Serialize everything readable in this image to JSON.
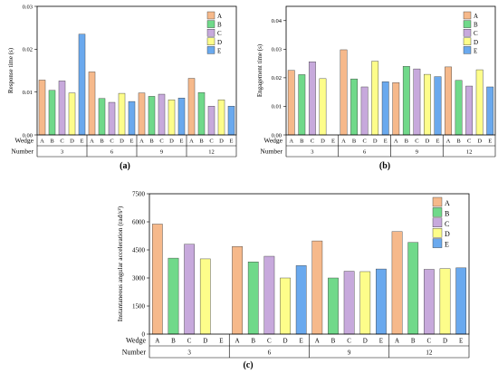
{
  "colors": {
    "A": "#f6b98b",
    "B": "#70d98a",
    "C": "#c7a9dc",
    "D": "#fdfd8a",
    "E": "#6aa9ee"
  },
  "group_label_top": "Wedge",
  "group_label_bottom": "Number",
  "chart_data": [
    {
      "type": "bar",
      "panel_label": "(a)",
      "ylabel": "Response time (s)",
      "ylim": [
        0,
        0.03
      ],
      "yticks": [
        "0.00",
        "0.01",
        "0.02",
        "0.03"
      ],
      "categories": [
        "3",
        "6",
        "9",
        "12"
      ],
      "series": [
        {
          "name": "A",
          "values": [
            0.0128,
            0.0147,
            0.0098,
            0.0132
          ]
        },
        {
          "name": "B",
          "values": [
            0.0104,
            0.0085,
            0.009,
            0.0099
          ]
        },
        {
          "name": "C",
          "values": [
            0.0126,
            0.0076,
            0.0095,
            0.0067
          ]
        },
        {
          "name": "D",
          "values": [
            0.0098,
            0.0097,
            0.0082,
            0.0082
          ]
        },
        {
          "name": "E",
          "values": [
            0.0235,
            0.0078,
            0.0086,
            0.0067
          ]
        }
      ],
      "legend_position": "top-right"
    },
    {
      "type": "bar",
      "panel_label": "(b)",
      "ylabel": "Engagement time (s)",
      "ylim": [
        0,
        0.045
      ],
      "yticks": [
        "0.00",
        "0.01",
        "0.02",
        "0.03",
        "0.04"
      ],
      "categories": [
        "3",
        "6",
        "9",
        "12"
      ],
      "series": [
        {
          "name": "A",
          "values": [
            0.0226,
            0.0298,
            0.0183,
            0.0238
          ]
        },
        {
          "name": "B",
          "values": [
            0.0211,
            0.0196,
            0.024,
            0.0191
          ]
        },
        {
          "name": "C",
          "values": [
            0.0256,
            0.0168,
            0.0231,
            0.0171
          ]
        },
        {
          "name": "D",
          "values": [
            0.0197,
            0.0258,
            0.0212,
            0.0228
          ]
        },
        {
          "name": "E",
          "values": [
            0,
            0.0186,
            0.0204,
            0.0168
          ]
        }
      ],
      "legend_position": "top-right"
    },
    {
      "type": "bar",
      "panel_label": "(c)",
      "ylabel": "Instantaneous angular acceleration (rad/s²)",
      "ylim": [
        0,
        7500
      ],
      "yticks": [
        "0",
        "1500",
        "3000",
        "4500",
        "6000",
        "7500"
      ],
      "categories": [
        "3",
        "6",
        "9",
        "12"
      ],
      "series": [
        {
          "name": "A",
          "values": [
            5880,
            4680,
            4980,
            5480
          ]
        },
        {
          "name": "B",
          "values": [
            4060,
            3860,
            3000,
            4900
          ]
        },
        {
          "name": "C",
          "values": [
            4800,
            4160,
            3360,
            3460
          ]
        },
        {
          "name": "D",
          "values": [
            4020,
            3000,
            3340,
            3500
          ]
        },
        {
          "name": "E",
          "values": [
            0,
            3660,
            3480,
            3540
          ]
        }
      ],
      "legend_position": "top-right"
    }
  ]
}
